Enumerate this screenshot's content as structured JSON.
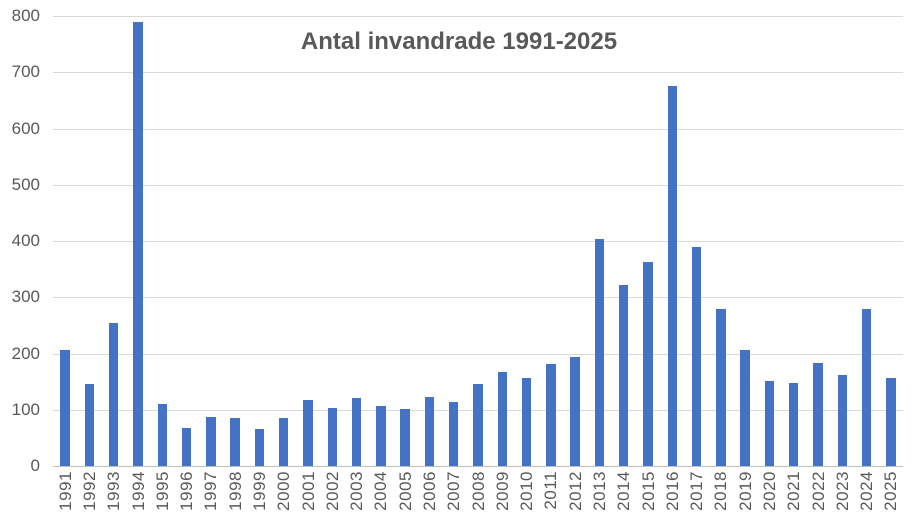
{
  "chart_data": {
    "type": "bar",
    "title": "Antal invandrade 1991-2025",
    "categories": [
      "1991",
      "1992",
      "1993",
      "1994",
      "1995",
      "1996",
      "1997",
      "1998",
      "1999",
      "2000",
      "2001",
      "2002",
      "2003",
      "2004",
      "2005",
      "2006",
      "2007",
      "2008",
      "2009",
      "2010",
      "2011",
      "2012",
      "2013",
      "2014",
      "2015",
      "2016",
      "2017",
      "2018",
      "2019",
      "2020",
      "2021",
      "2022",
      "2023",
      "2024",
      "2025"
    ],
    "values": [
      206,
      146,
      254,
      790,
      110,
      68,
      88,
      85,
      66,
      86,
      118,
      104,
      121,
      107,
      102,
      122,
      113,
      146,
      168,
      156,
      181,
      193,
      403,
      322,
      363,
      675,
      390,
      279,
      206,
      152,
      148,
      183,
      161,
      279,
      156
    ],
    "xlabel": "",
    "ylabel": "",
    "ylim": [
      0,
      800
    ],
    "ytick_interval": 100,
    "yticks": [
      0,
      100,
      200,
      300,
      400,
      500,
      600,
      700,
      800
    ],
    "grid": true,
    "legend_position": "none",
    "series_name": "Antal invandrade"
  },
  "colors": {
    "bar": "#4472c4",
    "gridline": "#d9d9d9",
    "axis_line": "#bfbfbf",
    "text": "#595959",
    "background": "#ffffff"
  }
}
